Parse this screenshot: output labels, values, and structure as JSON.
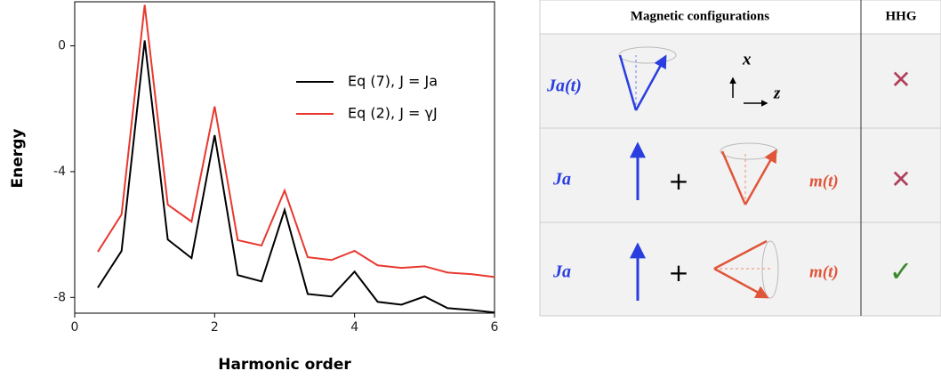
{
  "chart_data": {
    "type": "line",
    "x_label": "Harmonic order",
    "y_label": "Energy",
    "x": [
      0.33,
      0.67,
      1,
      1.33,
      1.67,
      2,
      2.33,
      2.67,
      3,
      3.33,
      3.67,
      4,
      4.33,
      4.67,
      5,
      5.33,
      5.67,
      6
    ],
    "series": [
      {
        "name": "Eq (7), J = Ja",
        "color": "#000000",
        "values": [
          -7.69,
          -6.52,
          0.17,
          -6.16,
          -6.75,
          -2.84,
          -7.29,
          -7.49,
          -5.22,
          -7.89,
          -7.97,
          -7.18,
          -8.14,
          -8.23,
          -7.97,
          -8.34,
          -8.4,
          -8.48
        ]
      },
      {
        "name": "Eq (2), J = γJ",
        "color": "#e8392f",
        "values": [
          -6.55,
          -5.36,
          1.3,
          -5.05,
          -5.59,
          -1.93,
          -6.18,
          -6.35,
          -4.6,
          -6.72,
          -6.81,
          -6.52,
          -6.98,
          -7.06,
          -7.01,
          -7.21,
          -7.26,
          -7.35
        ]
      }
    ],
    "xlim": [
      0,
      6
    ],
    "xticks": [
      0,
      2,
      4,
      6
    ],
    "ylim": [
      -8.5,
      1.4
    ],
    "yticks": [
      0,
      -4,
      -8
    ],
    "grid": false,
    "legend": "upper right"
  },
  "table": {
    "header": [
      "Magnetic configurations",
      "HHG"
    ],
    "axes": [
      "x",
      "z"
    ],
    "rows": [
      {
        "label": "Ja(t)",
        "hhg": "✕"
      },
      {
        "label": "Ja",
        "plus": "+",
        "moment": "m(t)",
        "hhg": "✕"
      },
      {
        "label": "Ja",
        "plus": "+",
        "moment": "m(t)",
        "hhg": "✓"
      }
    ]
  }
}
